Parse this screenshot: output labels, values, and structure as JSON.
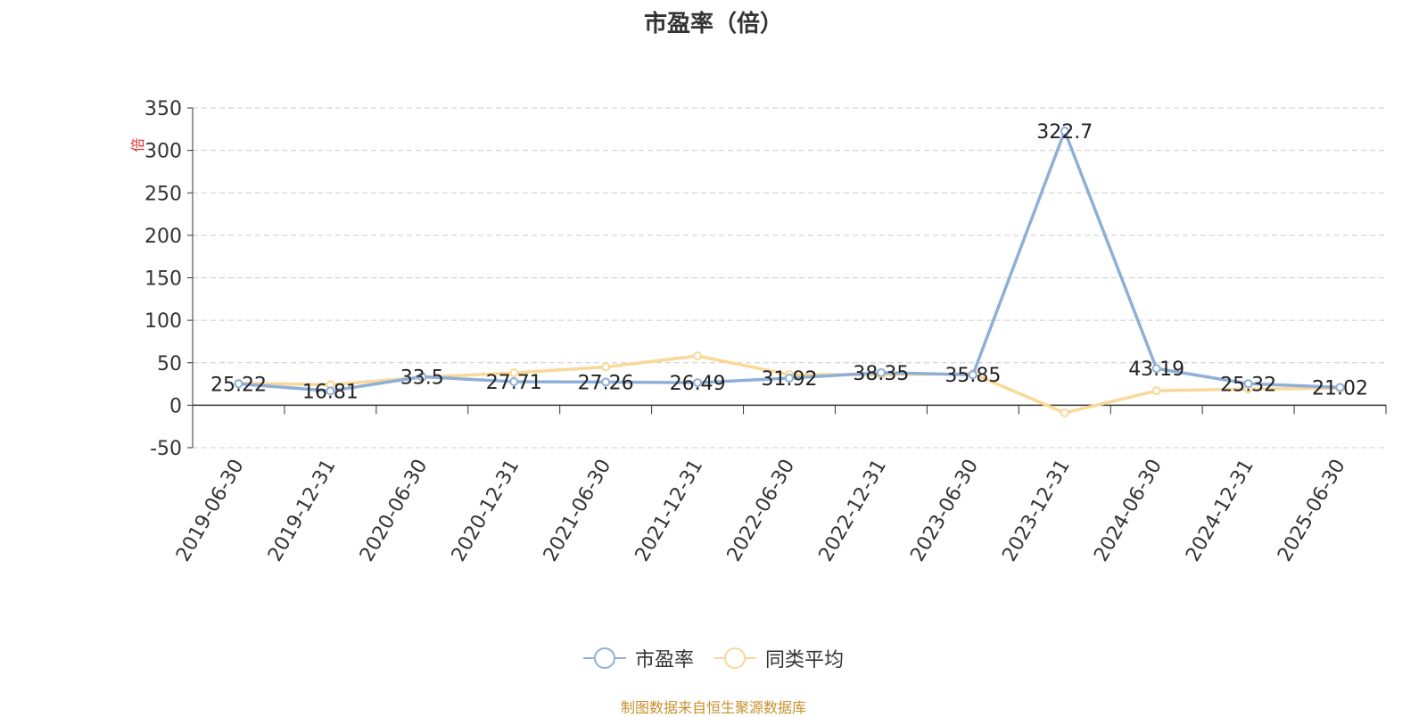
{
  "title": "市盈率（倍）",
  "ylabel": "倍",
  "source": "制图数据来自恒生聚源数据库",
  "colors": {
    "pe": "#8eafd8",
    "avg": "#f9d898",
    "ylabel": "#e03030",
    "grid": "#cccccc"
  },
  "legend": {
    "items": [
      "市盈率",
      "同类平均"
    ]
  },
  "chart_data": {
    "type": "line",
    "title": "市盈率（倍）",
    "ylabel": "倍",
    "xlabel": "",
    "categories": [
      "2019-06-30",
      "2019-12-31",
      "2020-06-30",
      "2020-12-31",
      "2021-06-30",
      "2021-12-31",
      "2022-06-30",
      "2022-12-31",
      "2023-06-30",
      "2023-12-31",
      "2024-06-30",
      "2024-12-31",
      "2025-06-30"
    ],
    "ylim": [
      -50,
      350
    ],
    "yticks": [
      -50,
      0,
      50,
      100,
      150,
      200,
      250,
      300,
      350
    ],
    "grid": true,
    "legend_position": "bottom",
    "series": [
      {
        "name": "市盈率",
        "values": [
          25.22,
          16.81,
          33.5,
          27.71,
          27.26,
          26.49,
          31.92,
          38.35,
          35.85,
          322.7,
          43.19,
          25.32,
          21.02
        ],
        "labels": [
          "25.22",
          "16.81",
          "33.5",
          "27.71",
          "27.26",
          "26.49",
          "31.92",
          "38.35",
          "35.85",
          "322.7",
          "43.19",
          "25.32",
          "21.02"
        ]
      },
      {
        "name": "同类平均",
        "values": [
          26,
          24,
          33,
          38,
          45,
          58,
          36,
          36,
          37,
          -9,
          17,
          19,
          20
        ]
      }
    ]
  }
}
